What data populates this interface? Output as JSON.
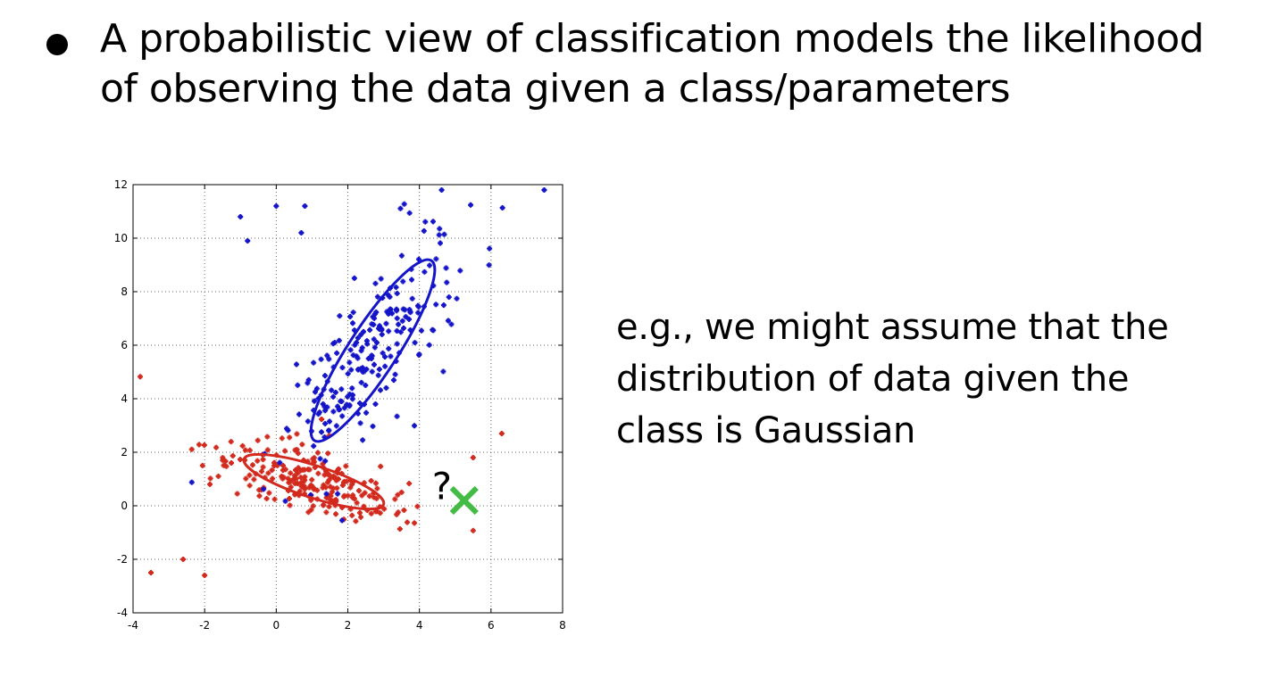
{
  "bullet": {
    "text": "A probabilistic view of classification models the likelihood of observing the data given a class/parameters"
  },
  "side_note": {
    "text": "e.g., we might assume that the distribution of data given the class is Gaussian"
  },
  "plot": {
    "question_mark": "?",
    "colors": {
      "blue": "#1414c8",
      "red": "#d22a1e",
      "green": "#44bb44",
      "grid": "#666666"
    },
    "x_ticks": [
      "-4",
      "-2",
      "0",
      "2",
      "4",
      "6",
      "8"
    ],
    "y_ticks": [
      "-4",
      "-2",
      "0",
      "2",
      "4",
      "6",
      "8",
      "10",
      "12"
    ],
    "xlim": [
      -4,
      8
    ],
    "ylim": [
      -4,
      12
    ],
    "grid": "dotted",
    "blue_ellipse": {
      "center": [
        2.7,
        5.8
      ],
      "rx": 3.0,
      "ry": 0.9,
      "angle_deg": -57
    },
    "red_ellipse": {
      "center": [
        1.05,
        0.9
      ],
      "rx": 2.05,
      "ry": 0.6,
      "angle_deg": 18
    },
    "green_cross": [
      5.25,
      0.2
    ],
    "blue_points_sample": [
      [
        -1,
        10.8
      ],
      [
        0,
        11.2
      ],
      [
        0.8,
        11.2
      ],
      [
        -0.8,
        9.9
      ],
      [
        0.7,
        10.2
      ]
    ],
    "red_points_sample": [
      [
        -3.5,
        -2.5
      ],
      [
        -2,
        -2.6
      ],
      [
        -2.6,
        -2
      ],
      [
        6.3,
        2.7
      ],
      [
        5.5,
        1.8
      ]
    ]
  }
}
